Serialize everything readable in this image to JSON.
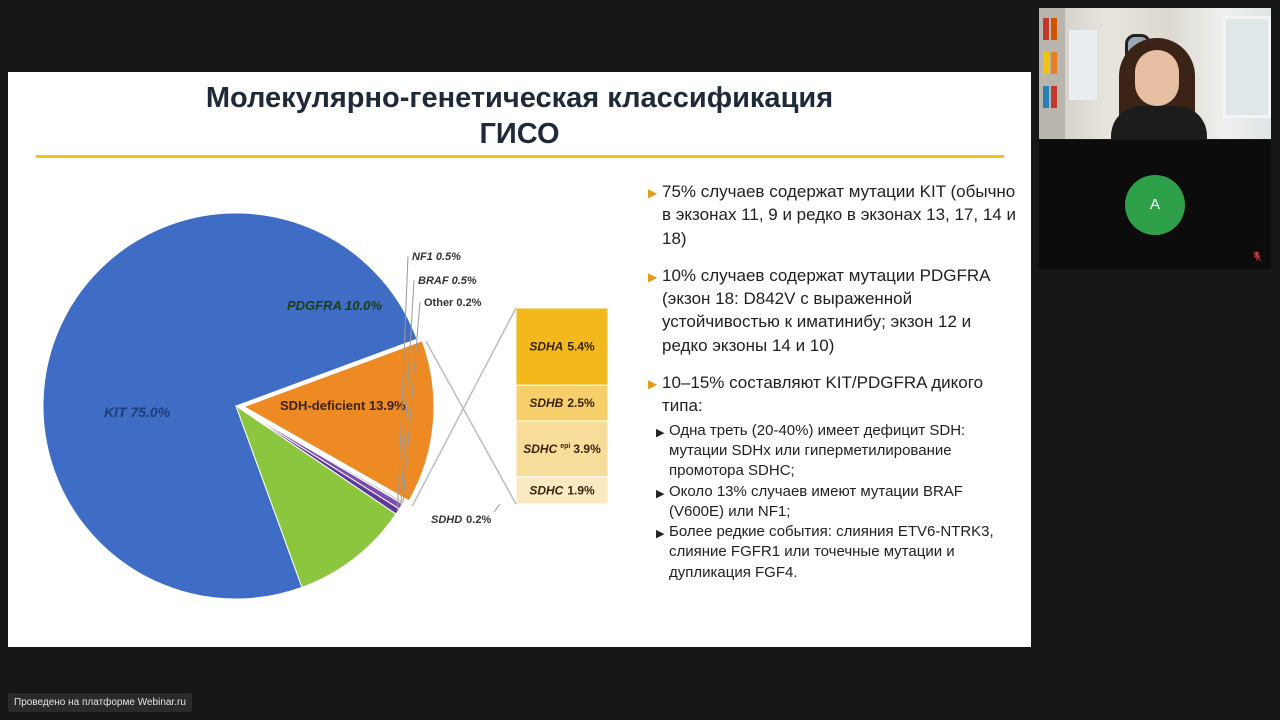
{
  "slide": {
    "title_line1": "Молекулярно-генетическая классификация",
    "title_line2": "ГИСО",
    "accent_color": "#f0c419"
  },
  "chart_data": {
    "type": "pie",
    "slices": [
      {
        "label": "KIT",
        "value": 75.0,
        "display": "KIT 75.0%",
        "color": "#3f6cc4"
      },
      {
        "label": "SDH-deficient",
        "value": 13.9,
        "display": "SDH-deficient 13.9%",
        "color": "#ed8a24"
      },
      {
        "label": "PDGFRA",
        "value": 10.0,
        "display": "PDGFRA 10.0%",
        "color": "#8cc63f"
      },
      {
        "label": "NF1",
        "value": 0.5,
        "display": "NF1 0.5%",
        "color": "#5b3b97"
      },
      {
        "label": "BRAF",
        "value": 0.5,
        "display": "BRAF 0.5%",
        "color": "#7b4fb0"
      },
      {
        "label": "Other",
        "value": 0.2,
        "display": "Other 0.2%",
        "color": "#c8c8c8"
      }
    ],
    "breakdown": {
      "parent": "SDH-deficient",
      "items": [
        {
          "label": "SDHA",
          "value": 5.4,
          "display_name": "SDHA",
          "display_value": "5.4%",
          "color": "#f2b81c"
        },
        {
          "label": "SDHB",
          "value": 2.5,
          "display_name": "SDHB",
          "display_value": "2.5%",
          "color": "#f6cf6a"
        },
        {
          "label": "SDHC epi",
          "value": 3.9,
          "display_name": "SDHC",
          "superscript": "epi",
          "display_value": "3.9%",
          "color": "#f8dc9a"
        },
        {
          "label": "SDHC",
          "value": 1.9,
          "display_name": "SDHC",
          "display_value": "1.9%",
          "color": "#fbe9c2"
        },
        {
          "label": "SDHD",
          "value": 0.2,
          "display_name": "SDHD",
          "display_value": "0.2%",
          "color": "#ffffff"
        }
      ]
    }
  },
  "bullets": {
    "items": [
      {
        "marker": "▶",
        "text": "75% случаев содержат мутации KIT (обычно в экзонах 11, 9 и редко в экзонах 13, 17, 14 и 18)"
      },
      {
        "marker": "▶",
        "text": "10% случаев содержат мутации PDGFRA (экзон 18: D842V с выраженной устойчивостью к иматинибу; экзон 12 и редко экзоны 14 и 10)"
      },
      {
        "marker": "▶",
        "text": "10–15% составляют KIT/PDGFRA дикого типа:"
      }
    ],
    "subitems": [
      {
        "marker": "▶",
        "text": "Одна треть (20-40%) имеет дефицит SDH: мутации SDHx или гиперметилирование промотора SDHC;"
      },
      {
        "marker": "▶",
        "text": "Около 13% случаев имеют мутации BRAF (V600E) или NF1;"
      },
      {
        "marker": "▶",
        "text": "Более редкие события: слияния ETV6-NTRK3, слияние FGFR1 или точечные мутации и дупликация FGF4."
      }
    ]
  },
  "participant": {
    "avatar_letter": "A",
    "avatar_color": "#2fa04a",
    "mic_icon": "mic-muted-icon"
  },
  "footer": {
    "badge_text": "Проведено на платформе Webinar.ru"
  }
}
